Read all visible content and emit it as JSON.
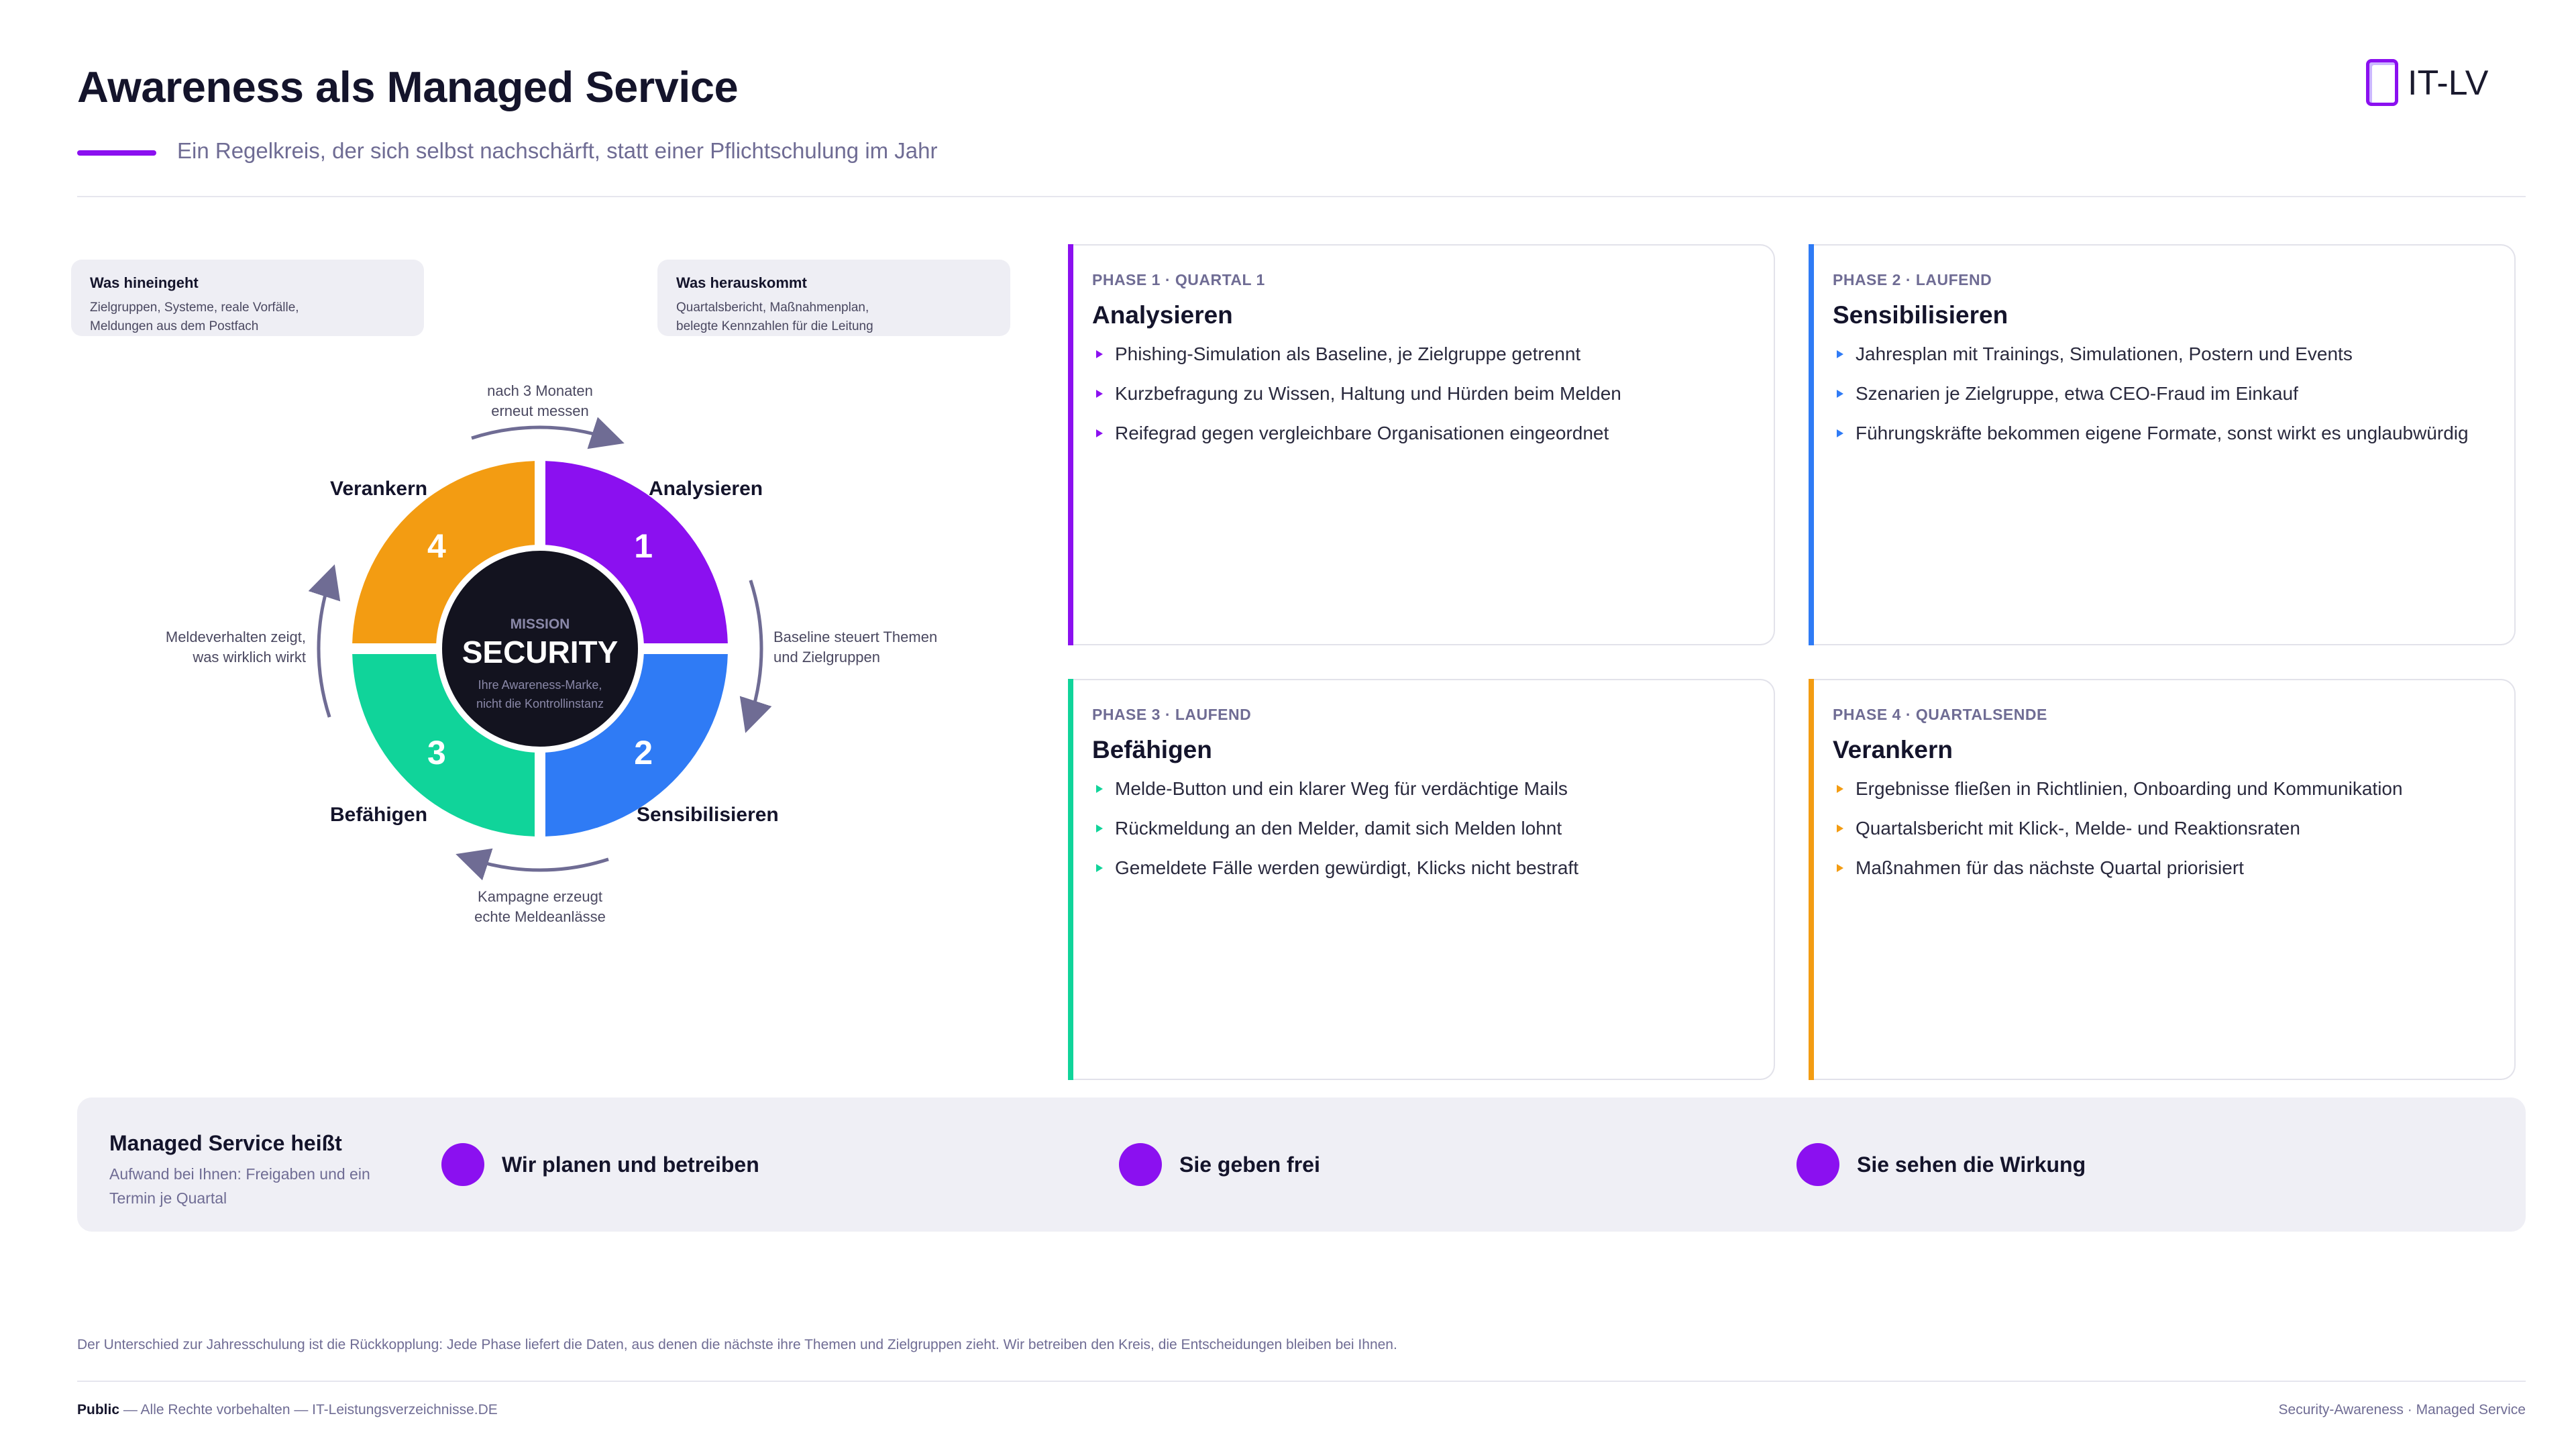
{
  "header": {
    "title": "Awareness als Managed Service",
    "subtitle": "Ein Regelkreis, der sich selbst nachschärft, statt einer Pflichtschulung im Jahr",
    "logo_text": "IT-LV"
  },
  "inputs_box": {
    "title": "Was hineingeht",
    "line1": "Zielgruppen, Systeme, reale Vorfälle,",
    "line2": "Meldungen aus dem Postfach"
  },
  "outputs_box": {
    "title": "Was herauskommt",
    "line1": "Quartalsbericht, Maßnahmenplan,",
    "line2": "belegte Kennzahlen für die Leitung"
  },
  "cycle": {
    "center_kicker": "MISSION",
    "center_title": "SECURITY",
    "center_sub1": "Ihre Awareness-Marke,",
    "center_sub2": "nicht die Kontrollinstanz",
    "segments": [
      {
        "number": "1",
        "label": "Analysieren",
        "color": "#8b10f0"
      },
      {
        "number": "2",
        "label": "Sensibilisieren",
        "color": "#2f7bf5"
      },
      {
        "number": "3",
        "label": "Befähigen",
        "color": "#10d49a"
      },
      {
        "number": "4",
        "label": "Verankern",
        "color": "#f39c12"
      }
    ],
    "notes": {
      "top1": "nach 3 Monaten",
      "top2": "erneut messen",
      "right1": "Baseline steuert Themen",
      "right2": "und Zielgruppen",
      "bottom1": "Kampagne erzeugt",
      "bottom2": "echte Meldeanlässe",
      "left1": "Meldeverhalten zeigt,",
      "left2": "was wirklich wirkt"
    },
    "arrow_color": "#6f6c94"
  },
  "cards": [
    {
      "phase": "PHASE 1 · QUARTAL 1",
      "title": "Analysieren",
      "color": "#8b10f0",
      "bullets": [
        "Phishing-Simulation als Baseline, je Zielgruppe getrennt",
        "Kurzbefragung zu Wissen, Haltung und Hürden beim Melden",
        "Reifegrad gegen vergleichbare Organisationen eingeordnet"
      ]
    },
    {
      "phase": "PHASE 2 · LAUFEND",
      "title": "Sensibilisieren",
      "color": "#2f7bf5",
      "bullets": [
        "Jahresplan mit Trainings, Simulationen, Postern und Events",
        "Szenarien je Zielgruppe, etwa CEO-Fraud im Einkauf",
        "Führungskräfte bekommen eigene Formate, sonst wirkt es unglaubwürdig"
      ]
    },
    {
      "phase": "PHASE 3 · LAUFEND",
      "title": "Befähigen",
      "color": "#10d49a",
      "bullets": [
        "Melde-Button und ein klarer Weg für verdächtige Mails",
        "Rückmeldung an den Melder, damit sich Melden lohnt",
        "Gemeldete Fälle werden gewürdigt, Klicks nicht bestraft"
      ]
    },
    {
      "phase": "PHASE 4 · QUARTALSENDE",
      "title": "Verankern",
      "color": "#f39c12",
      "bullets": [
        "Ergebnisse fließen in Richtlinien, Onboarding und Kommunikation",
        "Quartalsbericht mit Klick-, Melde- und Reaktionsraten",
        "Maßnahmen für das nächste Quartal priorisiert"
      ]
    }
  ],
  "strip": {
    "title": "Managed Service heißt",
    "sub1": "Aufwand bei Ihnen: Freigaben und ein",
    "sub2": "Termin je Quartal",
    "items": [
      "Wir planen und betreiben",
      "Sie geben frei",
      "Sie sehen die Wirkung"
    ]
  },
  "footnote": "Der Unterschied zur Jahresschulung ist die Rückkopplung: Jede Phase liefert die Daten, aus denen die nächste ihre Themen und Zielgruppen zieht. Wir betreiben den Kreis, die Entscheidungen bleiben bei Ihnen.",
  "footer": {
    "left_bold": "Public",
    "left_rest": " — Alle Rechte vorbehalten — IT-Leistungsverzeichnisse.DE",
    "right": "Security-Awareness · Managed Service"
  }
}
